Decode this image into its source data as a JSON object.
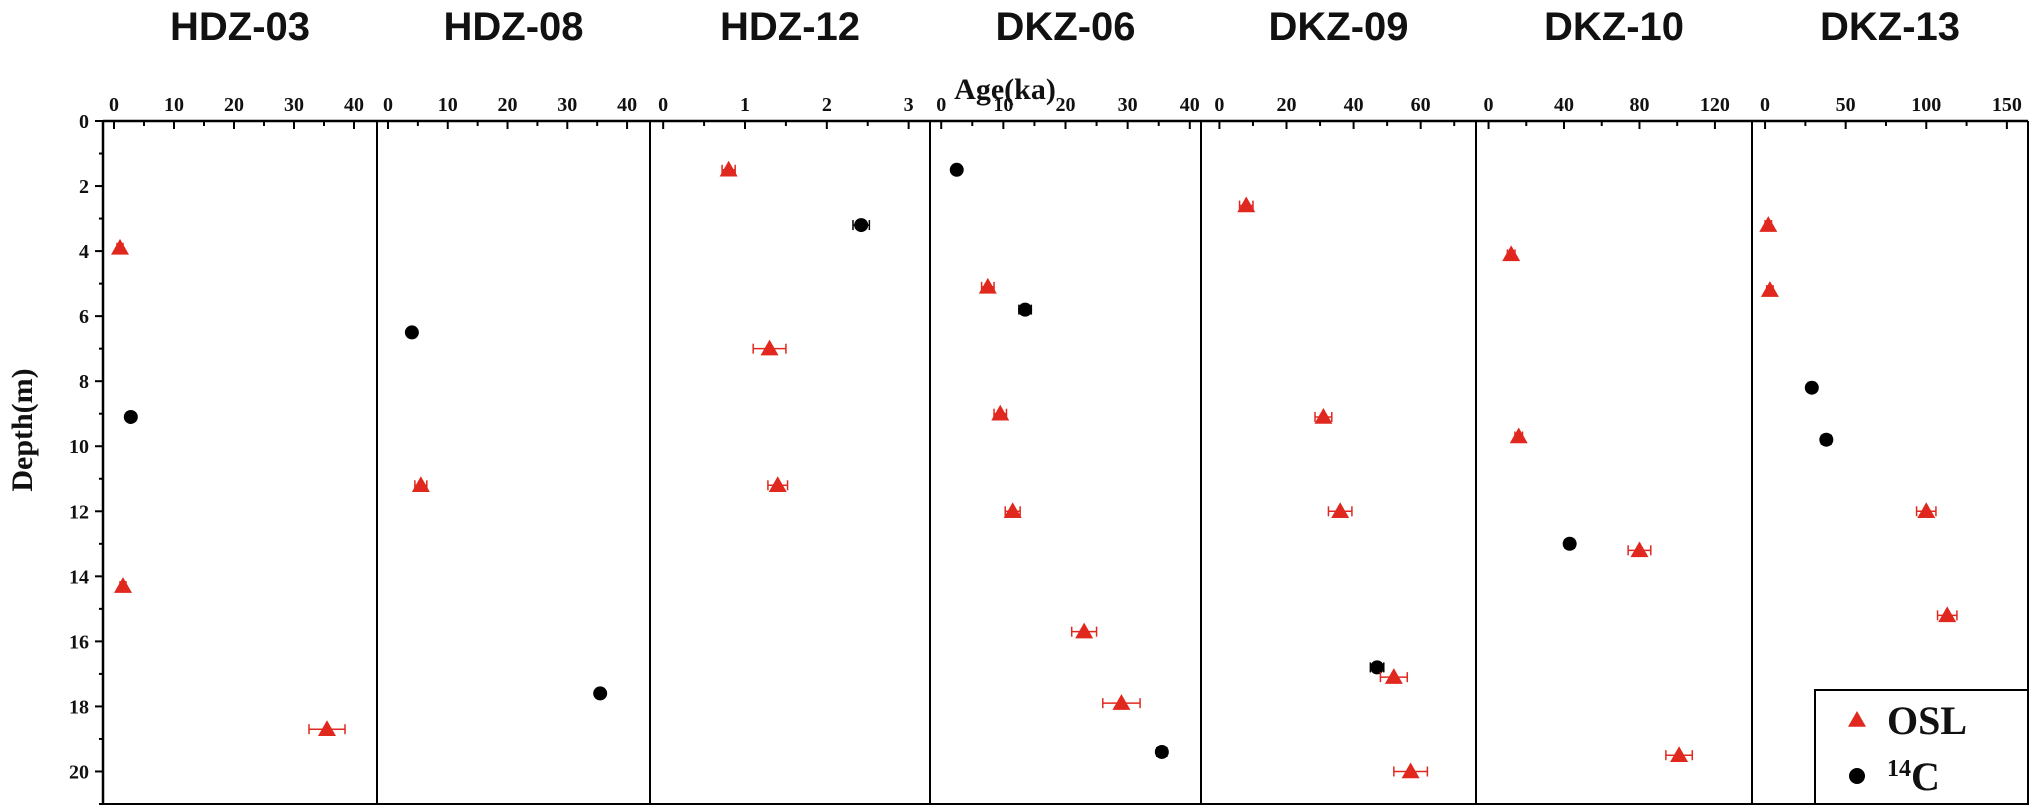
{
  "chart_data": {
    "type": "scatter",
    "x_axis_title": "Age(ka)",
    "y_axis_title": "Depth(m)",
    "y_axis": {
      "range": [
        0,
        21
      ],
      "ticks": [
        0,
        2,
        4,
        6,
        8,
        10,
        12,
        14,
        16,
        18,
        20
      ],
      "inverted": true
    },
    "colors": {
      "OSL": "#e0281f",
      "14C": "#000000"
    },
    "legend": {
      "placement": "bottom-right",
      "entries": [
        {
          "key": "OSL",
          "label": "OSL",
          "marker": "triangle"
        },
        {
          "key": "14C",
          "sup": "14",
          "label": "C",
          "marker": "circle"
        }
      ]
    },
    "panels": [
      {
        "title": "HDZ-03",
        "xlim": [
          -1,
          43
        ],
        "ticks": [
          0,
          10,
          20,
          30,
          40
        ],
        "points": [
          {
            "method": "OSL",
            "age": 1.0,
            "err": 0.5,
            "depth": 3.9
          },
          {
            "method": "14C",
            "age": 2.8,
            "err": 0.3,
            "depth": 9.1
          },
          {
            "method": "OSL",
            "age": 1.5,
            "err": 0.5,
            "depth": 14.3
          },
          {
            "method": "OSL",
            "age": 35.5,
            "err": 3.0,
            "depth": 18.7
          }
        ]
      },
      {
        "title": "HDZ-08",
        "xlim": [
          -1,
          43
        ],
        "ticks": [
          0,
          10,
          20,
          30,
          40
        ],
        "points": [
          {
            "method": "14C",
            "age": 4.0,
            "err": 0.4,
            "depth": 6.5
          },
          {
            "method": "OSL",
            "age": 5.5,
            "err": 1.0,
            "depth": 11.2
          },
          {
            "method": "14C",
            "age": 35.5,
            "err": 0.5,
            "depth": 17.6
          }
        ]
      },
      {
        "title": "HDZ-12",
        "xlim": [
          -0.1,
          3.2
        ],
        "ticks": [
          0,
          1,
          2,
          3
        ],
        "points": [
          {
            "method": "OSL",
            "age": 0.8,
            "err": 0.08,
            "depth": 1.5
          },
          {
            "method": "14C",
            "age": 2.42,
            "err": 0.1,
            "depth": 3.2
          },
          {
            "method": "OSL",
            "age": 1.3,
            "err": 0.2,
            "depth": 7.0
          },
          {
            "method": "OSL",
            "age": 1.4,
            "err": 0.12,
            "depth": 11.2
          }
        ]
      },
      {
        "title": "DKZ-06",
        "xlim": [
          -1,
          41
        ],
        "ticks": [
          0,
          10,
          20,
          30,
          40
        ],
        "points": [
          {
            "method": "14C",
            "age": 2.5,
            "err": 0.5,
            "depth": 1.5
          },
          {
            "method": "OSL",
            "age": 7.5,
            "err": 1.0,
            "depth": 5.1
          },
          {
            "method": "14C",
            "age": 13.5,
            "err": 1.0,
            "depth": 5.8
          },
          {
            "method": "OSL",
            "age": 9.5,
            "err": 1.0,
            "depth": 9.0
          },
          {
            "method": "OSL",
            "age": 11.5,
            "err": 1.2,
            "depth": 12.0
          },
          {
            "method": "OSL",
            "age": 23.0,
            "err": 2.0,
            "depth": 15.7
          },
          {
            "method": "OSL",
            "age": 29.0,
            "err": 3.0,
            "depth": 17.9
          },
          {
            "method": "14C",
            "age": 35.5,
            "err": 0.8,
            "depth": 19.4
          }
        ]
      },
      {
        "title": "DKZ-09",
        "xlim": [
          -4,
          75
        ],
        "ticks": [
          0,
          20,
          40,
          60
        ],
        "points": [
          {
            "method": "OSL",
            "age": 8.0,
            "err": 2.0,
            "depth": 2.6
          },
          {
            "method": "OSL",
            "age": 31.0,
            "err": 2.5,
            "depth": 9.1
          },
          {
            "method": "OSL",
            "age": 36.0,
            "err": 3.5,
            "depth": 12.0
          },
          {
            "method": "14C",
            "age": 47.0,
            "err": 2.0,
            "depth": 16.8
          },
          {
            "method": "OSL",
            "age": 52.0,
            "err": 4.0,
            "depth": 17.1
          },
          {
            "method": "OSL",
            "age": 57.0,
            "err": 5.0,
            "depth": 20.0
          }
        ]
      },
      {
        "title": "DKZ-10",
        "xlim": [
          -4,
          137
        ],
        "ticks": [
          0,
          40,
          80,
          120
        ],
        "points": [
          {
            "method": "OSL",
            "age": 12.0,
            "err": 2.0,
            "depth": 4.1
          },
          {
            "method": "OSL",
            "age": 16.0,
            "err": 2.0,
            "depth": 9.7
          },
          {
            "method": "14C",
            "age": 43.0,
            "err": 2.5,
            "depth": 13.0
          },
          {
            "method": "OSL",
            "age": 80.0,
            "err": 6.0,
            "depth": 13.2
          },
          {
            "method": "OSL",
            "age": 101.0,
            "err": 7.0,
            "depth": 19.5
          }
        ]
      },
      {
        "title": "DKZ-13",
        "xlim": [
          -5,
          160
        ],
        "ticks": [
          0,
          50,
          100,
          150
        ],
        "points": [
          {
            "method": "OSL",
            "age": 2.0,
            "err": 2.0,
            "depth": 3.2
          },
          {
            "method": "OSL",
            "age": 3.0,
            "err": 2.0,
            "depth": 5.2
          },
          {
            "method": "14C",
            "age": 29.0,
            "err": 2.5,
            "depth": 8.2
          },
          {
            "method": "14C",
            "age": 38.0,
            "err": 3.0,
            "depth": 9.8
          },
          {
            "method": "OSL",
            "age": 100.0,
            "err": 6.0,
            "depth": 12.0
          },
          {
            "method": "OSL",
            "age": 113.0,
            "err": 6.0,
            "depth": 15.2
          }
        ]
      }
    ]
  }
}
